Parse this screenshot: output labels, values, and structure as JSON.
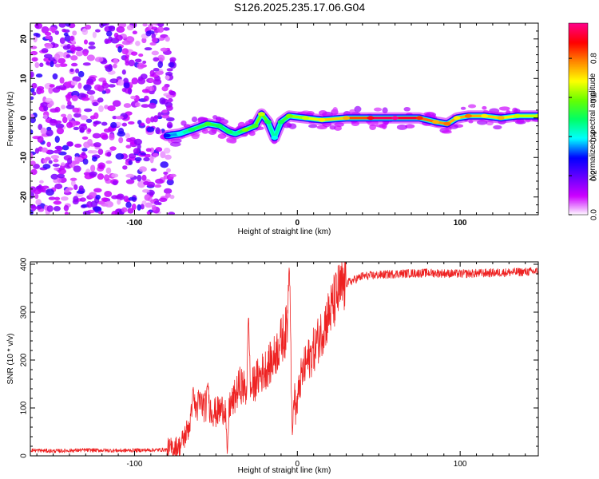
{
  "title": "S126.2025.235.17.06.G04",
  "chart_data": [
    {
      "type": "heatmap",
      "xlabel": "Height of straight line (km)",
      "ylabel": "Frequency (Hz)",
      "xlim": [
        -164,
        148
      ],
      "ylim": [
        -24.5,
        24
      ],
      "xticks": [
        -100,
        0,
        100
      ],
      "yticks": [
        -20,
        -10,
        0,
        10,
        20
      ],
      "colorbar": {
        "label": "Normalized spectral amplitude",
        "range": [
          0,
          0.98
        ],
        "ticks": [
          "0.0",
          "0.2",
          "0.4",
          "0.6",
          "0.8"
        ],
        "tick_values": [
          0,
          0.2,
          0.4,
          0.6,
          0.8
        ],
        "colors": [
          "#ffffff",
          "#cc00ff",
          "#6600ff",
          "#0000ff",
          "#00ffff",
          "#00ff66",
          "#66ff00",
          "#ffff00",
          "#ff8800",
          "#ff0000",
          "#ff0088"
        ]
      },
      "noise_region": {
        "x_from": -164,
        "x_to": -80,
        "typical_amplitude": 0.15
      },
      "ridge": [
        {
          "x": -80,
          "f": -4.5,
          "a": 0.3
        },
        {
          "x": -72,
          "f": -4,
          "a": 0.4
        },
        {
          "x": -65,
          "f": -3,
          "a": 0.5
        },
        {
          "x": -55,
          "f": -1.5,
          "a": 0.55
        },
        {
          "x": -48,
          "f": -2,
          "a": 0.5
        },
        {
          "x": -42,
          "f": -3.5,
          "a": 0.5
        },
        {
          "x": -38,
          "f": -4,
          "a": 0.45
        },
        {
          "x": -32,
          "f": -3,
          "a": 0.6
        },
        {
          "x": -26,
          "f": -2,
          "a": 0.55
        },
        {
          "x": -22,
          "f": 1,
          "a": 0.65
        },
        {
          "x": -18,
          "f": -1,
          "a": 0.5
        },
        {
          "x": -14,
          "f": -5,
          "a": 0.4
        },
        {
          "x": -10,
          "f": -1,
          "a": 0.5
        },
        {
          "x": -5,
          "f": 0.5,
          "a": 0.6
        },
        {
          "x": 5,
          "f": 0,
          "a": 0.65
        },
        {
          "x": 15,
          "f": -0.5,
          "a": 0.7
        },
        {
          "x": 30,
          "f": 0,
          "a": 0.75
        },
        {
          "x": 45,
          "f": 0,
          "a": 0.9
        },
        {
          "x": 60,
          "f": 0,
          "a": 0.98
        },
        {
          "x": 75,
          "f": 0,
          "a": 0.85
        },
        {
          "x": 85,
          "f": -1,
          "a": 0.75
        },
        {
          "x": 92,
          "f": -1.5,
          "a": 0.8
        },
        {
          "x": 98,
          "f": 0,
          "a": 0.7
        },
        {
          "x": 105,
          "f": 0.5,
          "a": 0.8
        },
        {
          "x": 115,
          "f": 0.5,
          "a": 0.7
        },
        {
          "x": 125,
          "f": 0,
          "a": 0.75
        },
        {
          "x": 135,
          "f": 0.5,
          "a": 0.65
        },
        {
          "x": 148,
          "f": 0.5,
          "a": 0.65
        }
      ]
    },
    {
      "type": "line",
      "xlabel": "Height of straight line (km)",
      "ylabel": "SNR (10 * v/v)",
      "xlim": [
        -164,
        148
      ],
      "ylim": [
        0,
        405
      ],
      "xticks": [
        -100,
        0,
        100
      ],
      "yticks": [
        0,
        100,
        200,
        300,
        400
      ],
      "color": "#ee2222",
      "series": [
        {
          "name": "SNR",
          "x": [
            -164,
            -150,
            -130,
            -110,
            -90,
            -80,
            -72,
            -68,
            -64,
            -60,
            -55,
            -50,
            -45,
            -40,
            -35,
            -30,
            -25,
            -20,
            -15,
            -10,
            -7,
            -5,
            -3,
            -1,
            2,
            5,
            10,
            15,
            20,
            25,
            30,
            40,
            60,
            80,
            100,
            120,
            148
          ],
          "values": [
            12,
            10,
            12,
            11,
            12,
            13,
            20,
            50,
            90,
            110,
            100,
            90,
            100,
            110,
            150,
            130,
            160,
            180,
            200,
            240,
            260,
            290,
            200,
            90,
            160,
            190,
            220,
            260,
            300,
            340,
            360,
            375,
            380,
            382,
            380,
            382,
            385
          ]
        }
      ],
      "spikes": [
        {
          "x": -64,
          "value": 145
        },
        {
          "x": -55,
          "value": 155
        },
        {
          "x": -43,
          "value": 0
        },
        {
          "x": -30,
          "value": 300
        },
        {
          "x": -5,
          "value": 400
        },
        {
          "x": -3,
          "value": 35
        }
      ]
    }
  ]
}
